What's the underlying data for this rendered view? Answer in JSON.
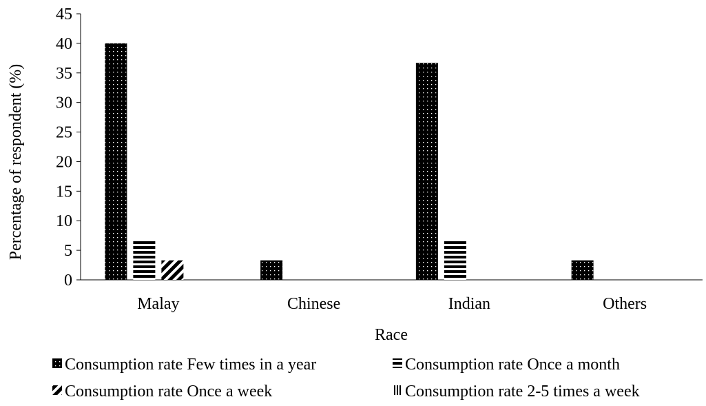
{
  "chart_data": {
    "type": "bar",
    "title": "",
    "xlabel": "Race",
    "ylabel": "Percentage of respondent (%)",
    "categories": [
      "Malay",
      "Chinese",
      "Indian",
      "Others"
    ],
    "ylim": [
      0,
      45
    ],
    "yticks": [
      0,
      5,
      10,
      15,
      20,
      25,
      30,
      35,
      40,
      45
    ],
    "grid": false,
    "legend_position": "bottom",
    "series": [
      {
        "name": "Consumption rate Few times in a year",
        "pattern": "dotted-black",
        "values": [
          40,
          3.3,
          36.7,
          3.3
        ]
      },
      {
        "name": "Consumption rate Once a month",
        "pattern": "horizontal-stripes",
        "values": [
          6.7,
          0,
          6.7,
          0
        ]
      },
      {
        "name": "Consumption rate Once a week",
        "pattern": "diagonal-stripes",
        "values": [
          3.3,
          0,
          0,
          0
        ]
      },
      {
        "name": "Consumption rate 2-5 times a week",
        "pattern": "vertical-stripes",
        "values": [
          0,
          0,
          0,
          0
        ]
      }
    ]
  }
}
